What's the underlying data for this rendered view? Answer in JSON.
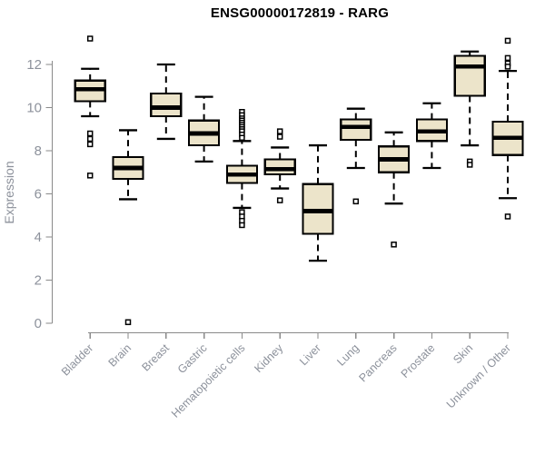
{
  "chart_data": {
    "type": "boxplot",
    "title": "ENSG00000172819 - RARG",
    "ylabel": "Expression",
    "xlabel": "",
    "ylim": [
      0,
      13.3
    ],
    "yticks": [
      0,
      2,
      4,
      6,
      8,
      10,
      12
    ],
    "grid": false,
    "legend": "none",
    "style": {
      "box_fill": "#ece4ca",
      "box_stroke": "#000000",
      "axis_color": "#8a8a8a",
      "tick_label_color": "#8c919b",
      "title_color": "#000000",
      "background": "#ffffff"
    },
    "categories": [
      "Bladder",
      "Brain",
      "Breast",
      "Gastric",
      "Hematopoietic cells",
      "Kidney",
      "Liver",
      "Lung",
      "Pancreas",
      "Prostate",
      "Skin",
      "Unknown / Other"
    ],
    "series": [
      {
        "category": "Bladder",
        "whisker_low": 9.6,
        "q1": 10.3,
        "median": 10.85,
        "q3": 11.25,
        "whisker_high": 11.8,
        "outliers": [
          13.2,
          8.8,
          8.55,
          8.3,
          6.85
        ]
      },
      {
        "category": "Brain",
        "whisker_low": 5.75,
        "q1": 6.7,
        "median": 7.2,
        "q3": 7.7,
        "whisker_high": 8.95,
        "outliers": [
          0.05
        ]
      },
      {
        "category": "Breast",
        "whisker_low": 8.55,
        "q1": 9.6,
        "median": 10.0,
        "q3": 10.65,
        "whisker_high": 12.0,
        "outliers": []
      },
      {
        "category": "Gastric",
        "whisker_low": 7.5,
        "q1": 8.25,
        "median": 8.8,
        "q3": 9.4,
        "whisker_high": 10.5,
        "outliers": []
      },
      {
        "category": "Hematopoietic cells",
        "whisker_low": 5.35,
        "q1": 6.5,
        "median": 6.9,
        "q3": 7.3,
        "whisker_high": 8.45,
        "outliers": [
          9.8,
          9.65,
          9.5,
          9.4,
          9.3,
          9.2,
          9.1,
          9.0,
          8.9,
          8.75,
          8.6,
          5.15,
          4.95,
          4.75,
          4.55
        ]
      },
      {
        "category": "Kidney",
        "whisker_low": 6.25,
        "q1": 6.9,
        "median": 7.15,
        "q3": 7.6,
        "whisker_high": 8.15,
        "outliers": [
          8.9,
          8.65,
          5.7
        ]
      },
      {
        "category": "Liver",
        "whisker_low": 2.9,
        "q1": 4.15,
        "median": 5.2,
        "q3": 6.45,
        "whisker_high": 8.25,
        "outliers": []
      },
      {
        "category": "Lung",
        "whisker_low": 7.2,
        "q1": 8.5,
        "median": 9.1,
        "q3": 9.45,
        "whisker_high": 9.95,
        "outliers": [
          5.65
        ]
      },
      {
        "category": "Pancreas",
        "whisker_low": 5.55,
        "q1": 7.0,
        "median": 7.6,
        "q3": 8.2,
        "whisker_high": 8.85,
        "outliers": [
          3.65
        ]
      },
      {
        "category": "Prostate",
        "whisker_low": 7.2,
        "q1": 8.45,
        "median": 8.9,
        "q3": 9.45,
        "whisker_high": 10.2,
        "outliers": []
      },
      {
        "category": "Skin",
        "whisker_low": 8.25,
        "q1": 10.55,
        "median": 11.9,
        "q3": 12.4,
        "whisker_high": 12.6,
        "outliers": [
          7.5,
          7.35
        ]
      },
      {
        "category": "Unknown / Other",
        "whisker_low": 5.8,
        "q1": 7.8,
        "median": 8.6,
        "q3": 9.35,
        "whisker_high": 11.7,
        "outliers": [
          13.1,
          12.3,
          12.05,
          11.9,
          4.95
        ]
      }
    ]
  }
}
